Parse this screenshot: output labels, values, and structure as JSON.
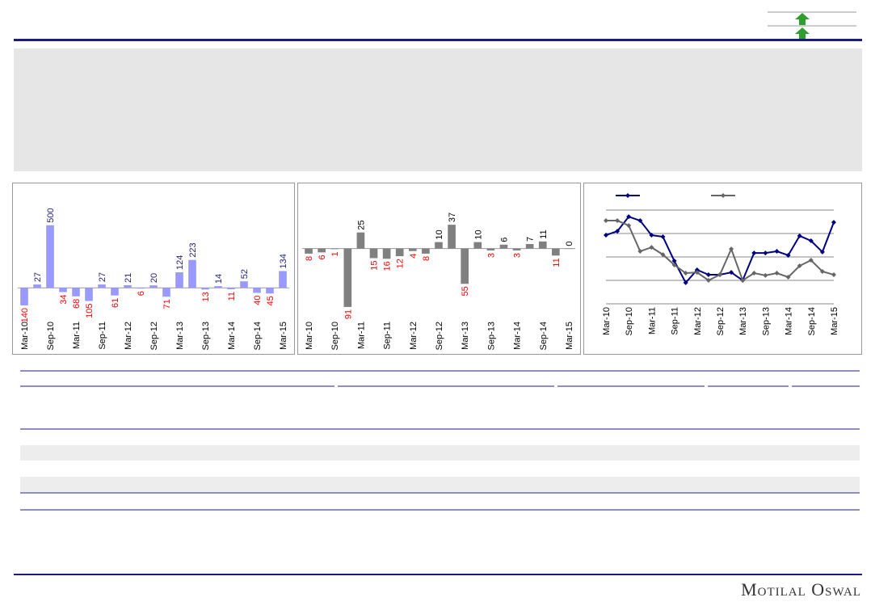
{
  "chart_data": [
    {
      "type": "bar",
      "categories": [
        "Mar-10",
        null,
        "Sep-10",
        null,
        "Mar-11",
        null,
        "Sep-11",
        null,
        "Mar-12",
        null,
        "Sep-12",
        null,
        "Mar-13",
        null,
        "Sep-13",
        null,
        "Mar-14",
        null,
        "Sep-14",
        null,
        "Mar-15"
      ],
      "values": [
        -140,
        27,
        500,
        -34,
        -68,
        -105,
        27,
        -61,
        21,
        -6,
        20,
        -71,
        124,
        223,
        -13,
        14,
        -11,
        52,
        -40,
        -45,
        134
      ],
      "value_labels": [
        "140",
        "27",
        "500",
        "34",
        "68",
        "105",
        "27",
        "61",
        "21",
        "6",
        "20",
        "71",
        "124",
        "223",
        "13",
        "14",
        "11",
        "52",
        "40",
        "45",
        "134"
      ],
      "color": "#9999ff",
      "label_color": "#1f1f7a",
      "negative_label_color": "#ff0000",
      "ylim": [
        -250,
        750
      ]
    },
    {
      "type": "bar",
      "categories": [
        "Mar-10",
        null,
        "Sep-10",
        null,
        "Mar-11",
        null,
        "Sep-11",
        null,
        "Mar-12",
        null,
        "Sep-12",
        null,
        "Mar-13",
        null,
        "Sep-13",
        null,
        "Mar-14",
        null,
        "Sep-14",
        null,
        "Mar-15"
      ],
      "values": [
        -8,
        -6,
        -1,
        -91,
        25,
        -15,
        -16,
        -12,
        -4,
        -8,
        10,
        37,
        -55,
        10,
        -3,
        6,
        -3,
        7,
        11,
        -11,
        0
      ],
      "value_labels": [
        "8",
        "6",
        "1",
        "91",
        "25",
        "15",
        "16",
        "12",
        "4",
        "8",
        "10",
        "37",
        "55",
        "10",
        "3",
        "6",
        "3",
        "7",
        "11",
        "11",
        "0"
      ],
      "color": "#808080",
      "label_color": "#000000",
      "negative_label_color": "#ff0000",
      "ylim": [
        -110,
        85
      ]
    },
    {
      "type": "line",
      "categories": [
        "Mar-10",
        null,
        "Sep-10",
        null,
        "Mar-11",
        null,
        "Sep-11",
        null,
        "Mar-12",
        null,
        "Sep-12",
        null,
        "Mar-13",
        null,
        "Sep-13",
        null,
        "Mar-14",
        null,
        "Sep-14",
        null,
        "Mar-15"
      ],
      "series": [
        {
          "color": "#000080",
          "values": [
            2.93,
            3.1,
            3.72,
            3.55,
            2.93,
            2.86,
            1.83,
            0.9,
            1.45,
            1.24,
            1.24,
            1.34,
            1.0,
            2.17,
            2.17,
            2.24,
            2.07,
            2.9,
            2.69,
            2.21,
            3.48
          ]
        },
        {
          "color": "#666666",
          "values": [
            3.55,
            3.55,
            3.34,
            2.24,
            2.41,
            2.1,
            1.66,
            1.31,
            1.34,
            1.0,
            1.24,
            2.34,
            1.0,
            1.31,
            1.21,
            1.31,
            1.14,
            1.62,
            1.86,
            1.38,
            1.24
          ]
        }
      ],
      "ylim": [
        0,
        4
      ],
      "yticks": [
        1,
        2,
        3,
        4
      ],
      "grid": true
    }
  ],
  "footer": {
    "brand": "Motilal Oswal"
  }
}
